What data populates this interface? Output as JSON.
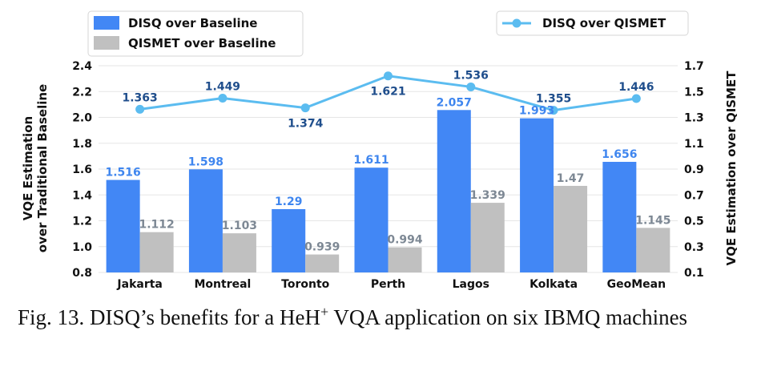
{
  "chart_data": {
    "type": "bar+line",
    "categories": [
      "Jakarta",
      "Montreal",
      "Toronto",
      "Perth",
      "Lagos",
      "Kolkata",
      "GeoMean"
    ],
    "series": [
      {
        "name": "DISQ over Baseline",
        "axis": "left",
        "kind": "bar",
        "color": "#4287f5",
        "values": [
          1.516,
          1.598,
          1.29,
          1.611,
          2.057,
          1.993,
          1.656
        ],
        "labels": [
          "1.516",
          "1.598",
          "1.29",
          "1.611",
          "2.057",
          "1.993",
          "1.656"
        ]
      },
      {
        "name": "QISMET over Baseline",
        "axis": "left",
        "kind": "bar",
        "color": "#c0c0c0",
        "values": [
          1.112,
          1.103,
          0.939,
          0.994,
          1.339,
          1.47,
          1.145
        ],
        "labels": [
          "1.112",
          "1.103",
          "0.939",
          "0.994",
          "1.339",
          "1.47",
          "1.145"
        ]
      },
      {
        "name": "DISQ over QISMET",
        "axis": "right",
        "kind": "line",
        "color": "#5bbcf0",
        "values": [
          1.363,
          1.449,
          1.374,
          1.621,
          1.536,
          1.355,
          1.446
        ],
        "labels": [
          "1.363",
          "1.449",
          "1.374",
          "1.621",
          "1.536",
          "1.355",
          "1.446"
        ]
      }
    ],
    "ylabel_left_line1": "VQE Estimation",
    "ylabel_left_line2": "over Traditional Baseline",
    "ylabel_right": "VQE Estimation over QISMET",
    "ylim_left": [
      0.8,
      2.4
    ],
    "yticks_left": [
      0.8,
      1.0,
      1.2,
      1.4,
      1.6,
      1.8,
      2.0,
      2.2,
      2.4
    ],
    "ytick_labels_left": [
      "0.8",
      "1.0",
      "1.2",
      "1.4",
      "1.6",
      "1.8",
      "2.0",
      "2.2",
      "2.4"
    ],
    "ylim_right": [
      0.1,
      1.7
    ],
    "yticks_right": [
      0.1,
      0.3,
      0.5,
      0.7,
      0.9,
      1.1,
      1.3,
      1.5,
      1.7
    ],
    "ytick_labels_right": [
      "0.1",
      "0.3",
      "0.5",
      "0.7",
      "0.9",
      "1.1",
      "1.3",
      "1.5",
      "1.7"
    ],
    "grid": "horizontal",
    "legend_left_placement": "top-left",
    "legend_right_placement": "top-right",
    "label_colors": {
      "disq_bar": "#3f86ef",
      "qismet_bar": "#7d8894",
      "line": "#1f4e8c"
    }
  },
  "caption": {
    "prefix": "Fig. 13.   DISQ’s benefits for a HeH",
    "superscript": "+",
    "suffix": " VQA application on six IBMQ machines"
  }
}
